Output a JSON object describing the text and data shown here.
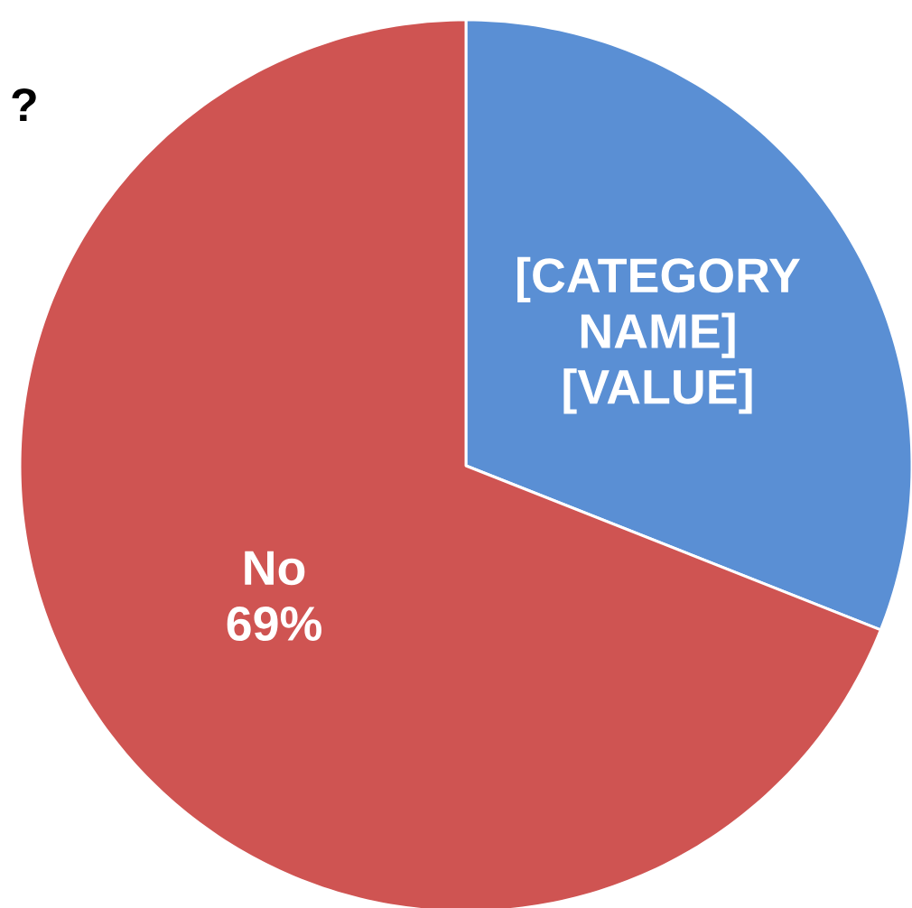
{
  "chart_data": {
    "type": "pie",
    "title": "?",
    "categories": [
      "[CATEGORY NAME]",
      "No"
    ],
    "values": [
      31,
      69
    ],
    "colors": [
      "#5a8fd4",
      "#cf5452"
    ],
    "value_labels": [
      "[VALUE]",
      "69%"
    ]
  }
}
